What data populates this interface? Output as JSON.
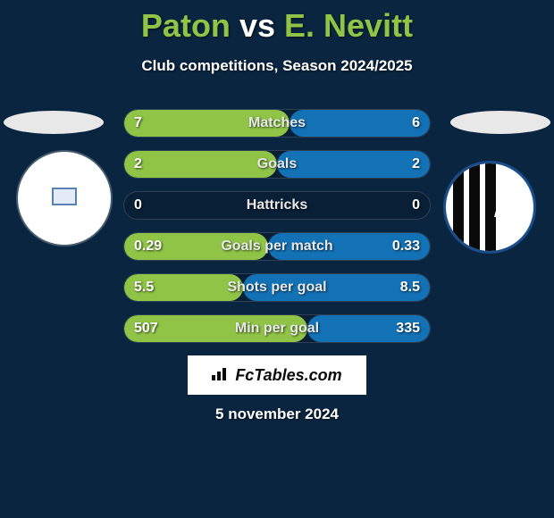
{
  "background_color": "#0a2540",
  "title": {
    "player1": "Paton",
    "vs": "vs",
    "player2": "E. Nevitt",
    "player1_color": "#8fc447",
    "player2_color": "#8fc447",
    "fontsize": 36
  },
  "subtitle": "Club competitions, Season 2024/2025",
  "stats": {
    "bar_color_left": "#8fc447",
    "bar_color_right": "#1272b5",
    "track_border": "rgba(255,255,255,0.15)",
    "rows": [
      {
        "label": "Matches",
        "left": "7",
        "right": "6",
        "left_pct": 54,
        "right_pct": 46
      },
      {
        "label": "Goals",
        "left": "2",
        "right": "2",
        "left_pct": 50,
        "right_pct": 50
      },
      {
        "label": "Hattricks",
        "left": "0",
        "right": "0",
        "left_pct": 0,
        "right_pct": 0
      },
      {
        "label": "Goals per match",
        "left": "0.29",
        "right": "0.33",
        "left_pct": 47,
        "right_pct": 53
      },
      {
        "label": "Shots per goal",
        "left": "5.5",
        "right": "8.5",
        "left_pct": 39,
        "right_pct": 61
      },
      {
        "label": "Min per goal",
        "left": "507",
        "right": "335",
        "left_pct": 60,
        "right_pct": 40
      }
    ]
  },
  "club_right": {
    "border_color": "#1b4d8a",
    "stripe_color": "#0a0a0a"
  },
  "watermark": "FcTables.com",
  "date": "5 november 2024"
}
